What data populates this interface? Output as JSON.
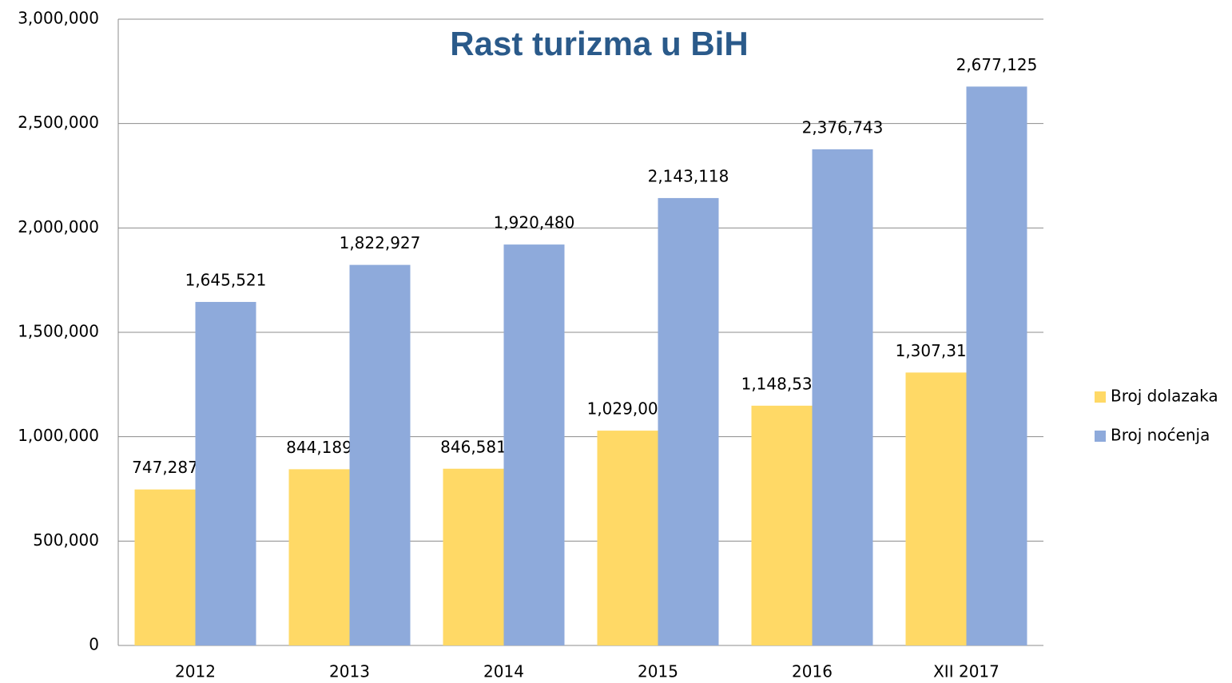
{
  "chart_data": {
    "type": "bar",
    "title": "Rast turizma u BiH",
    "categories": [
      "2012",
      "2013",
      "2014",
      "2015",
      "2016",
      "XII 2017"
    ],
    "series": [
      {
        "name": "Broj dolazaka",
        "color": "#ffd966",
        "values": [
          747287,
          844189,
          846581,
          1029000,
          1148530,
          1307319
        ],
        "value_labels": [
          "747,287",
          "844,189",
          "846,581",
          "1,029,000",
          "1,148,530",
          "1,307,319"
        ]
      },
      {
        "name": "Broj noćenja",
        "color": "#8eaadb",
        "values": [
          1645521,
          1822927,
          1920480,
          2143118,
          2376743,
          2677125
        ],
        "value_labels": [
          "1,645,521",
          "1,822,927",
          "1,920,480",
          "2,143,118",
          "2,376,743",
          "2,677,125"
        ]
      }
    ],
    "ylim": [
      0,
      3000000
    ],
    "yticks": [
      0,
      {
        "value": 500000,
        "label": "500,000"
      },
      {
        "value": 1000000,
        "label": "1,000,000"
      },
      {
        "value": 1500000,
        "label": "1,500,000"
      },
      {
        "value": 2000000,
        "label": "2,000,000"
      },
      {
        "value": 2500000,
        "label": "2,500,000"
      },
      {
        "value": 3000000,
        "label": "3,000,000"
      }
    ],
    "grid": true,
    "legend": "right"
  }
}
